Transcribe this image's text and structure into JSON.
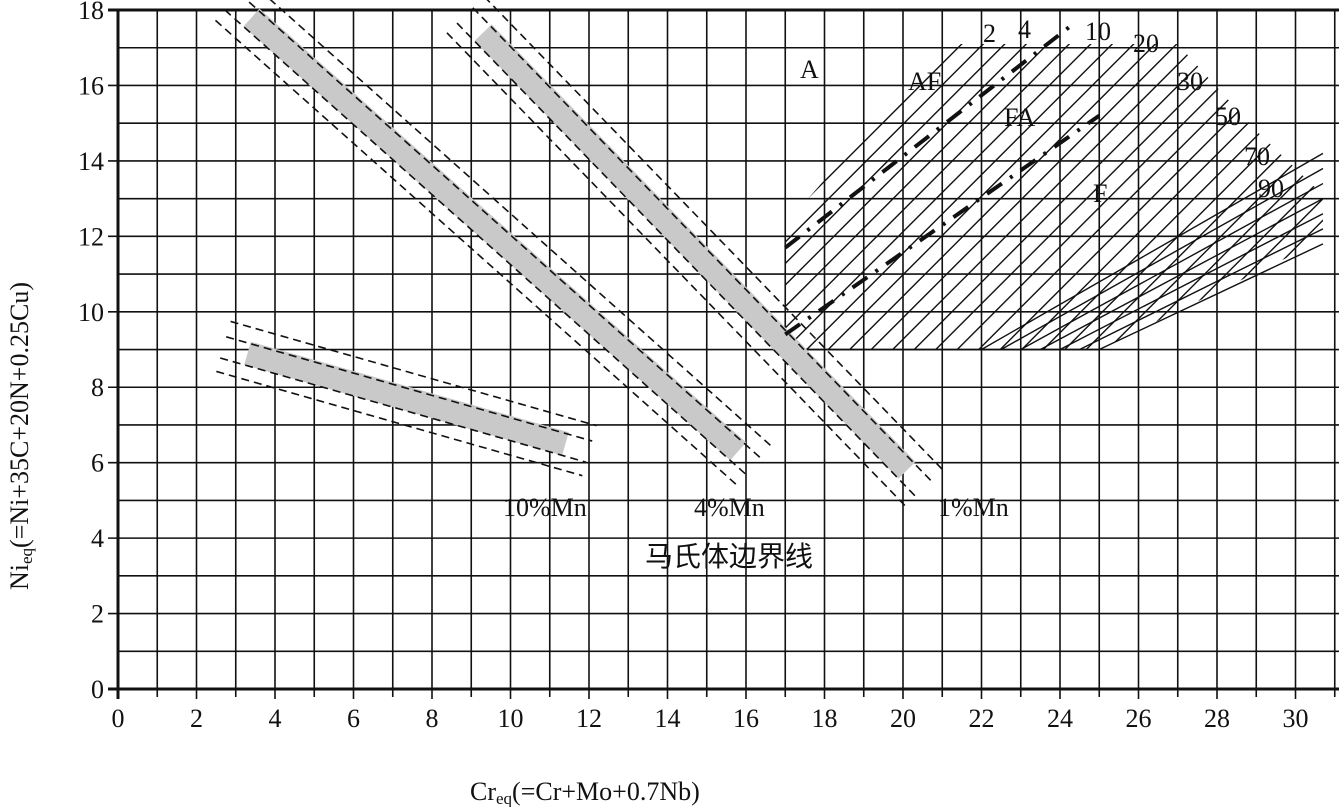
{
  "chart_data": {
    "type": "diagram",
    "title": "",
    "xlabel": "Cr",
    "xlabel_sub": "eq",
    "xlabel_rest": "(=Cr+Mo+0.7Nb)",
    "ylabel": "Ni",
    "ylabel_sub": "eq",
    "ylabel_rest": "(=Ni+35C+20N+0.25Cu)",
    "xlim": [
      0,
      31
    ],
    "ylim": [
      0,
      18
    ],
    "grid": true,
    "x_ticks": [
      "0",
      "2",
      "4",
      "6",
      "8",
      "10",
      "12",
      "14",
      "16",
      "18",
      "20",
      "22",
      "24",
      "26",
      "28",
      "30"
    ],
    "y_ticks": [
      "0",
      "2",
      "4",
      "6",
      "8",
      "10",
      "12",
      "14",
      "16",
      "18"
    ],
    "martensite_bands": [
      {
        "label": "1%Mn",
        "from": [
          9.3,
          17.4
        ],
        "to": [
          20.1,
          5.8
        ]
      },
      {
        "label": "4%Mn",
        "from": [
          3.4,
          17.8
        ],
        "to": [
          15.8,
          6.3
        ]
      },
      {
        "label": "10%Mn",
        "from": [
          3.3,
          8.9
        ],
        "to": [
          11.4,
          6.5
        ]
      }
    ],
    "martensite_caption": "马氏体边界线",
    "phase_labels": [
      "A",
      "AF",
      "FA",
      "F"
    ],
    "ferrite_numbers": [
      "2",
      "4",
      "10",
      "20",
      "30",
      "50",
      "70",
      "90"
    ],
    "boundaries": [
      {
        "name": "A/AF",
        "from": [
          17,
          11.7
        ],
        "to": [
          24.3,
          17.6
        ]
      },
      {
        "name": "FA/F",
        "from": [
          17,
          9.4
        ],
        "to": [
          25,
          15.2
        ]
      }
    ]
  }
}
